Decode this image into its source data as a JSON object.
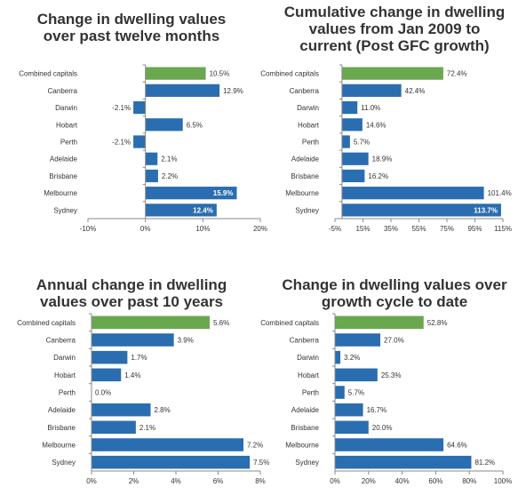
{
  "colors": {
    "bar": "#2a6db0",
    "highlight": "#6aa84f",
    "axis": "#8a8a8a",
    "text": "#333333",
    "label_on_bar": "#ffffff"
  },
  "chart_data": [
    {
      "type": "bar",
      "orientation": "horizontal",
      "title": [
        "Change in dwelling values",
        "over past twelve months"
      ],
      "categories": [
        "Combined capitals",
        "Canberra",
        "Darwin",
        "Hobart",
        "Perth",
        "Adelaide",
        "Brisbane",
        "Melbourne",
        "Sydney"
      ],
      "values": [
        10.5,
        12.9,
        -2.1,
        6.5,
        -2.1,
        2.1,
        2.2,
        15.9,
        12.4
      ],
      "value_labels": [
        "10.5%",
        "12.9%",
        "-2.1%",
        "6.5%",
        "-2.1%",
        "2.1%",
        "2.2%",
        "15.9%",
        "12.4%"
      ],
      "xlim": [
        -10,
        20
      ],
      "xticks": [
        -10,
        0,
        10,
        20
      ],
      "xtick_labels": [
        "-10%",
        "0%",
        "10%",
        "20%"
      ],
      "highlight_category": "Combined capitals",
      "labels_inside": [
        "Melbourne",
        "Sydney"
      ]
    },
    {
      "type": "bar",
      "orientation": "horizontal",
      "title": [
        "Cumulative change in dwelling",
        "values from Jan 2009 to",
        "current (Post GFC growth)"
      ],
      "categories": [
        "Combined capitals",
        "Canberra",
        "Darwin",
        "Hobart",
        "Perth",
        "Adelaide",
        "Brisbane",
        "Melbourne",
        "Sydney"
      ],
      "values": [
        72.4,
        42.4,
        11.0,
        14.6,
        5.7,
        18.9,
        16.2,
        101.4,
        113.7
      ],
      "value_labels": [
        "72.4%",
        "42.4%",
        "11.0%",
        "14.6%",
        "5.7%",
        "18.9%",
        "16.2%",
        "101.4%",
        "113.7%"
      ],
      "xlim": [
        -5,
        115
      ],
      "xticks": [
        -5,
        15,
        35,
        55,
        75,
        95,
        115
      ],
      "xtick_labels": [
        "-5%",
        "15%",
        "35%",
        "55%",
        "75%",
        "95%",
        "115%"
      ],
      "highlight_category": "Combined capitals",
      "labels_inside": [
        "Sydney"
      ]
    },
    {
      "type": "bar",
      "orientation": "horizontal",
      "title": [
        "Annual change in dwelling",
        "values over past 10 years"
      ],
      "categories": [
        "Combined capitals",
        "Canberra",
        "Darwin",
        "Hobart",
        "Perth",
        "Adelaide",
        "Brisbane",
        "Melbourne",
        "Sydney"
      ],
      "values": [
        5.6,
        3.9,
        1.7,
        1.4,
        0.0,
        2.8,
        2.1,
        7.2,
        7.5
      ],
      "value_labels": [
        "5.6%",
        "3.9%",
        "1.7%",
        "1.4%",
        "0.0%",
        "2.8%",
        "2.1%",
        "7.2%",
        "7.5%"
      ],
      "xlim": [
        0,
        8
      ],
      "xticks": [
        0,
        2,
        4,
        6,
        8
      ],
      "xtick_labels": [
        "0%",
        "2%",
        "4%",
        "6%",
        "8%"
      ],
      "highlight_category": "Combined capitals",
      "labels_inside": []
    },
    {
      "type": "bar",
      "orientation": "horizontal",
      "title": [
        "Change in dwelling values over",
        "growth cycle to date"
      ],
      "categories": [
        "Combined capitals",
        "Canberra",
        "Darwin",
        "Hobart",
        "Perth",
        "Adelaide",
        "Brisbane",
        "Melbourne",
        "Sydney"
      ],
      "values": [
        52.8,
        27.0,
        3.2,
        25.3,
        5.7,
        16.7,
        20.0,
        64.6,
        81.2
      ],
      "value_labels": [
        "52.8%",
        "27.0%",
        "3.2%",
        "25.3%",
        "5.7%",
        "16.7%",
        "20.0%",
        "64.6%",
        "81.2%"
      ],
      "xlim": [
        0,
        100
      ],
      "xticks": [
        0,
        20,
        40,
        60,
        80,
        100
      ],
      "xtick_labels": [
        "0%",
        "20%",
        "40%",
        "60%",
        "80%",
        "100%"
      ],
      "highlight_category": "Combined capitals",
      "labels_inside": []
    }
  ]
}
